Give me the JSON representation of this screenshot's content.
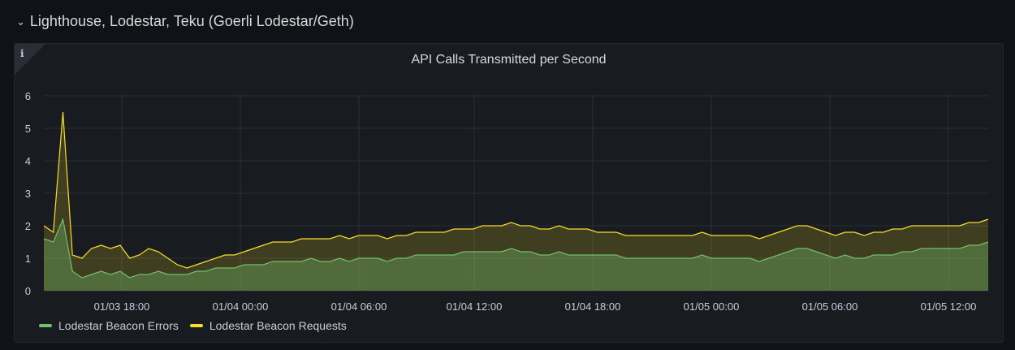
{
  "row": {
    "title": "Lighthouse, Lodestar, Teku (Goerli Lodestar/Geth)"
  },
  "panel": {
    "info_label": "i"
  },
  "chart_data": {
    "type": "area",
    "title": "API Calls Transmitted per Second",
    "ylim": [
      0,
      6
    ],
    "yticks": [
      "0",
      "1",
      "2",
      "3",
      "4",
      "5",
      "6"
    ],
    "xticks": [
      "01/03 18:00",
      "01/04 00:00",
      "01/04 06:00",
      "01/04 12:00",
      "01/04 18:00",
      "01/05 00:00",
      "01/05 06:00",
      "01/05 12:00"
    ],
    "grid": true,
    "legend_placement": "bottom-left",
    "series": [
      {
        "name": "Lodestar Beacon Errors",
        "color": "#73bf69",
        "values": [
          1.6,
          1.5,
          2.2,
          0.6,
          0.4,
          0.5,
          0.6,
          0.5,
          0.6,
          0.4,
          0.5,
          0.5,
          0.6,
          0.5,
          0.5,
          0.5,
          0.6,
          0.6,
          0.7,
          0.7,
          0.7,
          0.8,
          0.8,
          0.8,
          0.9,
          0.9,
          0.9,
          0.9,
          1.0,
          0.9,
          0.9,
          1.0,
          0.9,
          1.0,
          1.0,
          1.0,
          0.9,
          1.0,
          1.0,
          1.1,
          1.1,
          1.1,
          1.1,
          1.1,
          1.2,
          1.2,
          1.2,
          1.2,
          1.2,
          1.3,
          1.2,
          1.2,
          1.1,
          1.1,
          1.2,
          1.1,
          1.1,
          1.1,
          1.1,
          1.1,
          1.1,
          1.0,
          1.0,
          1.0,
          1.0,
          1.0,
          1.0,
          1.0,
          1.0,
          1.1,
          1.0,
          1.0,
          1.0,
          1.0,
          1.0,
          0.9,
          1.0,
          1.1,
          1.2,
          1.3,
          1.3,
          1.2,
          1.1,
          1.0,
          1.1,
          1.0,
          1.0,
          1.1,
          1.1,
          1.1,
          1.2,
          1.2,
          1.3,
          1.3,
          1.3,
          1.3,
          1.3,
          1.4,
          1.4,
          1.5
        ]
      },
      {
        "name": "Lodestar Beacon Requests",
        "color": "#fade2a",
        "values": [
          2.0,
          1.8,
          5.5,
          1.1,
          1.0,
          1.3,
          1.4,
          1.3,
          1.4,
          1.0,
          1.1,
          1.3,
          1.2,
          1.0,
          0.8,
          0.7,
          0.8,
          0.9,
          1.0,
          1.1,
          1.1,
          1.2,
          1.3,
          1.4,
          1.5,
          1.5,
          1.5,
          1.6,
          1.6,
          1.6,
          1.6,
          1.7,
          1.6,
          1.7,
          1.7,
          1.7,
          1.6,
          1.7,
          1.7,
          1.8,
          1.8,
          1.8,
          1.8,
          1.9,
          1.9,
          1.9,
          2.0,
          2.0,
          2.0,
          2.1,
          2.0,
          2.0,
          1.9,
          1.9,
          2.0,
          1.9,
          1.9,
          1.9,
          1.8,
          1.8,
          1.8,
          1.7,
          1.7,
          1.7,
          1.7,
          1.7,
          1.7,
          1.7,
          1.7,
          1.8,
          1.7,
          1.7,
          1.7,
          1.7,
          1.7,
          1.6,
          1.7,
          1.8,
          1.9,
          2.0,
          2.0,
          1.9,
          1.8,
          1.7,
          1.8,
          1.8,
          1.7,
          1.8,
          1.8,
          1.9,
          1.9,
          2.0,
          2.0,
          2.0,
          2.0,
          2.0,
          2.0,
          2.1,
          2.1,
          2.2
        ]
      }
    ]
  }
}
